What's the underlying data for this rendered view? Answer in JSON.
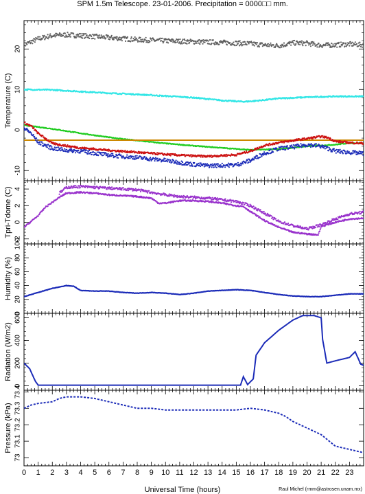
{
  "page": {
    "title": "SPM 1.5m Telescope. 23-01-2006. Precipitation = 0000□□ mm.",
    "xlabel": "Universal Time (hours)",
    "credit": "Raul Michel (rmm@astrosen.unam.mx)"
  },
  "colors": {
    "gray": "#606060",
    "cyan": "#33e6e6",
    "green": "#22cc22",
    "orange": "#cc8800",
    "red": "#cc1111",
    "blue": "#1c2cb8",
    "purple": "#9933cc"
  },
  "chart_data": [
    {
      "type": "scatter",
      "ylabel": "Temperature (C)",
      "xlim": [
        0,
        24
      ],
      "ylim": [
        -12.5,
        27
      ],
      "yticks": [
        -10,
        0,
        10,
        20
      ],
      "xtick_labels": [
        "0",
        "1",
        "2",
        "3",
        "4",
        "5",
        "6",
        "7",
        "8",
        "9",
        "10",
        "11",
        "12",
        "13",
        "14",
        "15",
        "16",
        "17",
        "18",
        "19",
        "20",
        "21",
        "22",
        "23"
      ],
      "series": [
        {
          "color": "gray",
          "noise": 0.6,
          "x": [
            0,
            1,
            2,
            3,
            4,
            6,
            8,
            10,
            12,
            14,
            16,
            17,
            18,
            19,
            20,
            21,
            22,
            23,
            24
          ],
          "y": [
            21,
            22.5,
            23.3,
            23.5,
            23.3,
            22.8,
            22.3,
            22,
            21.8,
            21.6,
            21.3,
            21,
            20.8,
            21.5,
            21.4,
            20.9,
            21,
            21.2,
            21
          ]
        },
        {
          "color": "cyan",
          "noise": 0.15,
          "x": [
            0,
            2,
            4,
            6,
            8,
            10,
            12,
            14,
            15.5,
            16,
            17,
            18,
            20,
            22,
            24
          ],
          "y": [
            10,
            9.9,
            9.5,
            9.1,
            8.8,
            8.4,
            8,
            7.3,
            7,
            7.1,
            7.4,
            7.8,
            8.1,
            8.3,
            8.3
          ]
        },
        {
          "color": "green",
          "noise": 0.1,
          "x": [
            0,
            2,
            4,
            6,
            8,
            10,
            12,
            14,
            16,
            18,
            20,
            22,
            23,
            24
          ],
          "y": [
            1.2,
            0.3,
            -0.8,
            -1.8,
            -2.6,
            -3.3,
            -3.9,
            -4.4,
            -4.9,
            -4.7,
            -4,
            -3.6,
            -3.2,
            -3.3
          ]
        },
        {
          "color": "orange",
          "noise": 0,
          "x": [
            0,
            24
          ],
          "y": [
            -2.5,
            -2.5
          ]
        },
        {
          "color": "red",
          "noise": 0.25,
          "x": [
            0,
            0.5,
            1,
            2,
            3,
            4,
            6,
            8,
            10,
            12,
            13,
            14,
            15,
            16,
            17,
            18,
            19,
            20,
            21,
            21.5,
            22,
            23,
            24
          ],
          "y": [
            1.8,
            1,
            -0.8,
            -3.3,
            -3.9,
            -4.4,
            -5,
            -5.5,
            -6,
            -6.4,
            -6.5,
            -6.3,
            -6.1,
            -5.2,
            -3.8,
            -3.1,
            -2.6,
            -2.1,
            -1.6,
            -1.9,
            -2.8,
            -3.1,
            -3.3
          ]
        },
        {
          "color": "blue",
          "noise": 0.5,
          "x": [
            0,
            0.5,
            1,
            2,
            3,
            4,
            6,
            8,
            10,
            12,
            13,
            14,
            15,
            16,
            17,
            18,
            19,
            20,
            21,
            22,
            23,
            24
          ],
          "y": [
            0.5,
            -0.8,
            -3,
            -4.5,
            -5,
            -5.2,
            -6.2,
            -6.8,
            -7.5,
            -8.5,
            -8.8,
            -8.7,
            -8.6,
            -7.5,
            -5.7,
            -4.6,
            -4.2,
            -3.6,
            -4,
            -5.2,
            -5.5,
            -5.8
          ]
        }
      ]
    },
    {
      "type": "scatter",
      "ylabel": "Tpri-Tdome (C)",
      "xlim": [
        0,
        24
      ],
      "ylim": [
        -2.6,
        5
      ],
      "yticks": [
        -2,
        0,
        2,
        4
      ],
      "series": [
        {
          "color": "purple",
          "noise": 0.08,
          "x": [
            0,
            1,
            1.5,
            2,
            2.5,
            3,
            4,
            5,
            6,
            7,
            8,
            9,
            9.5,
            10,
            11,
            12,
            13,
            14,
            15,
            15.5,
            16,
            17,
            18,
            19,
            20,
            20.8,
            21,
            22,
            23,
            24
          ],
          "y": [
            -0.6,
            0.8,
            1.8,
            2.4,
            3,
            3.5,
            3.6,
            3.5,
            3.3,
            3.2,
            3.1,
            2.9,
            2.3,
            2.3,
            2.6,
            2.6,
            2.5,
            2.3,
            2,
            1.9,
            1.3,
            0.2,
            -0.6,
            -1.2,
            -1.4,
            -1.5,
            -0.5,
            0,
            0.4,
            0.5
          ]
        },
        {
          "color": "purple",
          "noise": 0.15,
          "x": [
            2.5,
            3,
            4,
            5,
            6,
            7,
            8,
            9,
            10,
            11,
            12,
            13,
            14,
            15,
            16,
            17,
            18,
            19,
            20,
            21,
            22,
            23,
            24
          ],
          "y": [
            3.5,
            4.2,
            4.3,
            4.2,
            4.1,
            4,
            3.9,
            3.6,
            3.3,
            3.1,
            3,
            2.9,
            2.7,
            2.5,
            2,
            1.1,
            0.1,
            -0.4,
            -0.8,
            -0.3,
            0.4,
            1,
            1.2
          ]
        }
      ]
    },
    {
      "type": "line",
      "ylabel": "Humidity (%)",
      "xlim": [
        0,
        24
      ],
      "ylim": [
        0,
        100
      ],
      "yticks": [
        0,
        20,
        40,
        60,
        80,
        100
      ],
      "series": [
        {
          "color": "blue",
          "noise": 0.3,
          "x": [
            0,
            1,
            2,
            3,
            3.5,
            4,
            5,
            6,
            7,
            8,
            9,
            10,
            11,
            12,
            13,
            14,
            15,
            16,
            17,
            18,
            19,
            20,
            21,
            22,
            23,
            24
          ],
          "y": [
            24,
            30,
            36,
            40,
            39,
            33,
            32,
            32,
            30,
            29,
            30,
            29,
            27,
            29,
            32,
            33,
            34,
            33,
            30,
            27,
            25,
            24,
            24,
            26,
            28,
            28
          ]
        }
      ]
    },
    {
      "type": "line",
      "ylabel": "Radiation (W/m2)",
      "xlim": [
        0,
        24
      ],
      "ylim": [
        -40,
        640
      ],
      "yticks": [
        0,
        200,
        400,
        600
      ],
      "series": [
        {
          "color": "blue",
          "noise": 0,
          "x": [
            0,
            0.4,
            0.8,
            1,
            2,
            4,
            6,
            8,
            10,
            12,
            14,
            15.3,
            15.5,
            15.8,
            16.2,
            16.4,
            17,
            18,
            19,
            19.7,
            20.5,
            21,
            21.1,
            21.4,
            22,
            23,
            23.4,
            23.8,
            24
          ],
          "y": [
            200,
            150,
            40,
            5,
            5,
            5,
            5,
            5,
            5,
            5,
            5,
            5,
            80,
            10,
            60,
            270,
            380,
            490,
            580,
            620,
            620,
            600,
            410,
            200,
            220,
            250,
            300,
            190,
            180
          ]
        }
      ]
    },
    {
      "type": "scatter",
      "ylabel": "Pressure (kPa)",
      "xlim": [
        0,
        24
      ],
      "ylim": [
        72.95,
        73.41
      ],
      "ytick_labels": [
        "73",
        "73.1",
        "73.2",
        "73.3",
        "73.4"
      ],
      "series": [
        {
          "color": "blue",
          "noise": 0,
          "x": [
            0,
            0.5,
            1,
            2,
            2.5,
            3,
            4,
            5,
            6,
            6.5,
            7,
            7.5,
            8,
            9,
            10,
            12,
            14,
            15,
            16,
            17,
            18,
            18.5,
            19,
            20,
            21,
            22,
            23,
            24
          ],
          "y": [
            73.3,
            73.32,
            73.33,
            73.34,
            73.36,
            73.37,
            73.37,
            73.36,
            73.34,
            73.33,
            73.32,
            73.31,
            73.3,
            73.3,
            73.29,
            73.29,
            73.29,
            73.29,
            73.3,
            73.29,
            73.27,
            73.25,
            73.22,
            73.18,
            73.14,
            73.07,
            73.05,
            73.03
          ]
        }
      ]
    }
  ]
}
